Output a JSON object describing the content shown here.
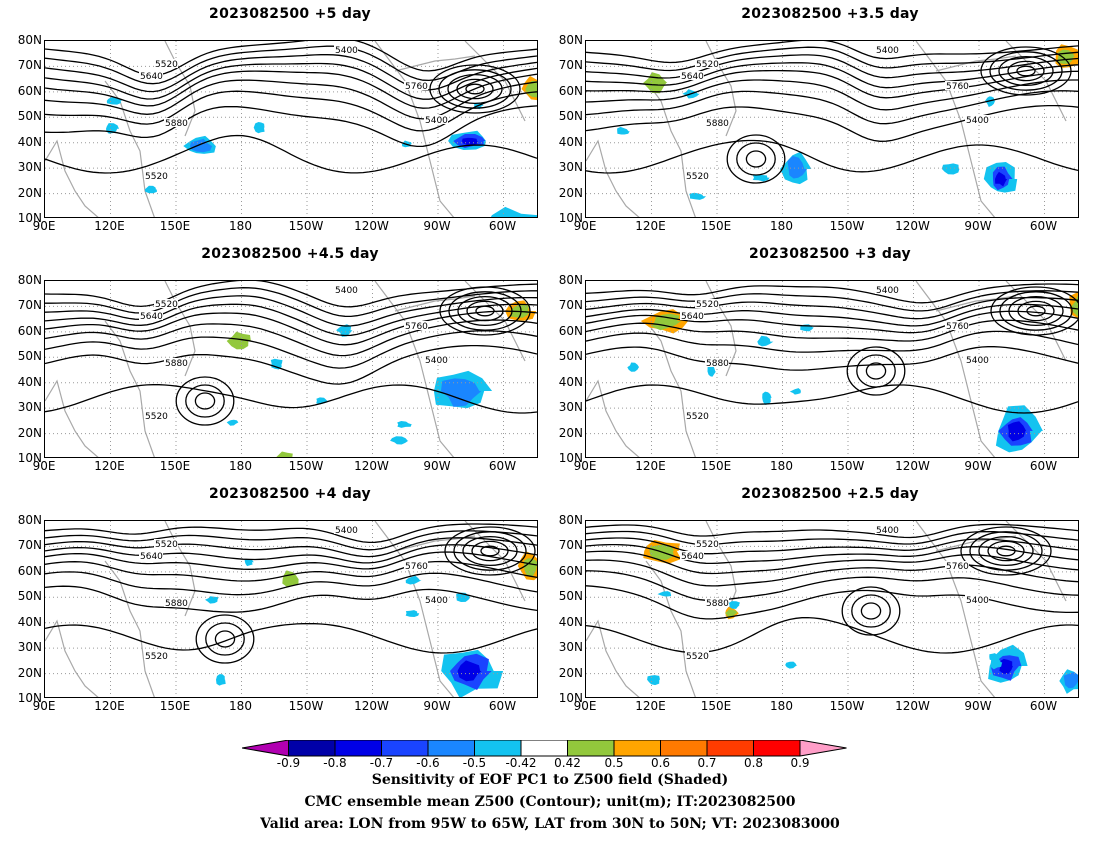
{
  "panels": [
    {
      "title": "2023082500 +5 day"
    },
    {
      "title": "2023082500 +3.5 day"
    },
    {
      "title": "2023082500 +4.5 day"
    },
    {
      "title": "2023082500 +3 day"
    },
    {
      "title": "2023082500 +4 day"
    },
    {
      "title": "2023082500 +2.5 day"
    }
  ],
  "lat_ticks": [
    "80N",
    "70N",
    "60N",
    "50N",
    "40N",
    "30N",
    "20N",
    "10N"
  ],
  "lon_ticks": [
    "90E",
    "120E",
    "150E",
    "180",
    "150W",
    "120W",
    "90W",
    "60W"
  ],
  "contour_labels": [
    "5400",
    "5520",
    "5640",
    "5760",
    "5880"
  ],
  "colorbar": {
    "labels": [
      "-0.9",
      "-0.8",
      "-0.7",
      "-0.6",
      "-0.5",
      "-0.42",
      "0.42",
      "0.5",
      "0.6",
      "0.7",
      "0.8",
      "0.9"
    ],
    "colors": [
      "#b100b1",
      "#0000a8",
      "#0000e6",
      "#1a44ff",
      "#1a86ff",
      "#13c3f0",
      "#ffffff",
      "#92c83c",
      "#ffa500",
      "#ff7a00",
      "#ff3c00",
      "#ff0000",
      "#ff9ec8"
    ]
  },
  "caption": {
    "line1": "Sensitivity of EOF PC1 to Z500 field (Shaded)",
    "line2": "CMC ensemble mean Z500 (Contour); unit(m); IT:2023082500",
    "line3": "Valid area: LON from 95W to 65W, LAT from 30N to 50N; VT: 2023083000"
  },
  "colors": {
    "contour": "#000000",
    "coast": "#a8a8a8",
    "grid": "#9a9a9a"
  }
}
